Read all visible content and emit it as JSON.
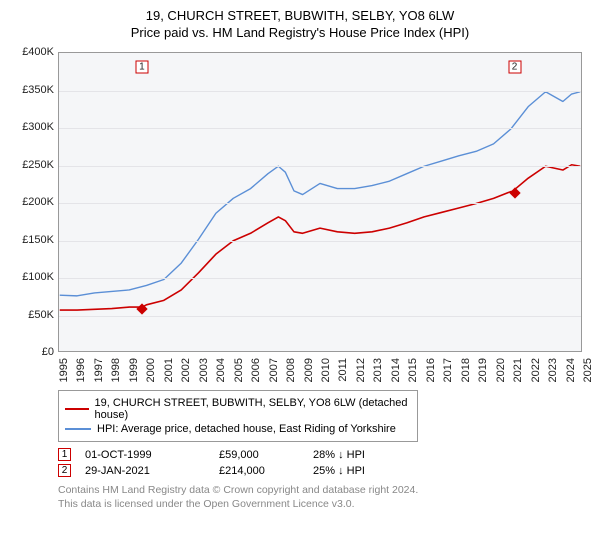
{
  "title_line1": "19, CHURCH STREET, BUBWITH, SELBY, YO8 6LW",
  "title_line2": "Price paid vs. HM Land Registry's House Price Index (HPI)",
  "chart": {
    "type": "line",
    "background_color": "#f5f6f8",
    "plot_border_color": "#999999",
    "grid_color": "#e4e4e8",
    "y_axis": {
      "min": 0,
      "max": 400000,
      "tick_step": 50000,
      "ticks": [
        0,
        50000,
        100000,
        150000,
        200000,
        250000,
        300000,
        350000,
        400000
      ],
      "tick_labels": [
        "£0",
        "£50K",
        "£100K",
        "£150K",
        "£200K",
        "£250K",
        "£300K",
        "£350K",
        "£400K"
      ],
      "label_fontsize": 11
    },
    "x_axis": {
      "min": 1995,
      "max": 2025,
      "ticks": [
        1995,
        1996,
        1997,
        1998,
        1999,
        2000,
        2001,
        2002,
        2003,
        2004,
        2005,
        2006,
        2007,
        2008,
        2009,
        2010,
        2011,
        2012,
        2013,
        2014,
        2015,
        2016,
        2017,
        2018,
        2019,
        2020,
        2021,
        2022,
        2023,
        2024,
        2025
      ],
      "label_fontsize": 11,
      "rotation": -90
    },
    "series": [
      {
        "name": "property",
        "label": "19, CHURCH STREET, BUBWITH, SELBY, YO8 6LW (detached house)",
        "color": "#cc0000",
        "line_width": 1.6,
        "points": [
          [
            1995,
            55000
          ],
          [
            1996,
            55000
          ],
          [
            1997,
            56000
          ],
          [
            1998,
            57000
          ],
          [
            1999,
            59000
          ],
          [
            1999.75,
            59000
          ],
          [
            2000,
            62000
          ],
          [
            2001,
            68000
          ],
          [
            2002,
            82000
          ],
          [
            2003,
            105000
          ],
          [
            2004,
            130000
          ],
          [
            2005,
            148000
          ],
          [
            2006,
            158000
          ],
          [
            2007,
            172000
          ],
          [
            2007.6,
            180000
          ],
          [
            2008,
            175000
          ],
          [
            2008.5,
            160000
          ],
          [
            2009,
            158000
          ],
          [
            2010,
            165000
          ],
          [
            2011,
            160000
          ],
          [
            2012,
            158000
          ],
          [
            2013,
            160000
          ],
          [
            2014,
            165000
          ],
          [
            2015,
            172000
          ],
          [
            2016,
            180000
          ],
          [
            2017,
            186000
          ],
          [
            2018,
            192000
          ],
          [
            2019,
            198000
          ],
          [
            2020,
            205000
          ],
          [
            2021,
            214000
          ],
          [
            2021.08,
            214000
          ],
          [
            2022,
            232000
          ],
          [
            2023,
            248000
          ],
          [
            2024,
            243000
          ],
          [
            2024.5,
            250000
          ],
          [
            2025,
            248000
          ]
        ]
      },
      {
        "name": "hpi",
        "label": "HPI: Average price, detached house, East Riding of Yorkshire",
        "color": "#5b8fd6",
        "line_width": 1.4,
        "points": [
          [
            1995,
            75000
          ],
          [
            1996,
            74000
          ],
          [
            1997,
            78000
          ],
          [
            1998,
            80000
          ],
          [
            1999,
            82000
          ],
          [
            2000,
            88000
          ],
          [
            2001,
            96000
          ],
          [
            2002,
            118000
          ],
          [
            2003,
            150000
          ],
          [
            2004,
            185000
          ],
          [
            2005,
            205000
          ],
          [
            2006,
            218000
          ],
          [
            2007,
            238000
          ],
          [
            2007.6,
            248000
          ],
          [
            2008,
            240000
          ],
          [
            2008.5,
            215000
          ],
          [
            2009,
            210000
          ],
          [
            2010,
            225000
          ],
          [
            2011,
            218000
          ],
          [
            2012,
            218000
          ],
          [
            2013,
            222000
          ],
          [
            2014,
            228000
          ],
          [
            2015,
            238000
          ],
          [
            2016,
            248000
          ],
          [
            2017,
            255000
          ],
          [
            2018,
            262000
          ],
          [
            2019,
            268000
          ],
          [
            2020,
            278000
          ],
          [
            2021,
            298000
          ],
          [
            2022,
            328000
          ],
          [
            2023,
            348000
          ],
          [
            2024,
            335000
          ],
          [
            2024.5,
            345000
          ],
          [
            2025,
            348000
          ]
        ]
      }
    ],
    "sale_markers": [
      {
        "n": "1",
        "year": 1999.75,
        "price": 59000,
        "box_y": 382000
      },
      {
        "n": "2",
        "year": 2021.08,
        "price": 214000,
        "box_y": 382000
      }
    ]
  },
  "legend": {
    "border_color": "#999999",
    "items": [
      {
        "color": "#cc0000",
        "label": "19, CHURCH STREET, BUBWITH, SELBY, YO8 6LW (detached house)"
      },
      {
        "color": "#5b8fd6",
        "label": "HPI: Average price, detached house, East Riding of Yorkshire"
      }
    ]
  },
  "sales": [
    {
      "n": "1",
      "date": "01-OCT-1999",
      "price": "£59,000",
      "vs_hpi": "28% ↓ HPI"
    },
    {
      "n": "2",
      "date": "29-JAN-2021",
      "price": "£214,000",
      "vs_hpi": "25% ↓ HPI"
    }
  ],
  "footnote_line1": "Contains HM Land Registry data © Crown copyright and database right 2024.",
  "footnote_line2": "This data is licensed under the Open Government Licence v3.0."
}
